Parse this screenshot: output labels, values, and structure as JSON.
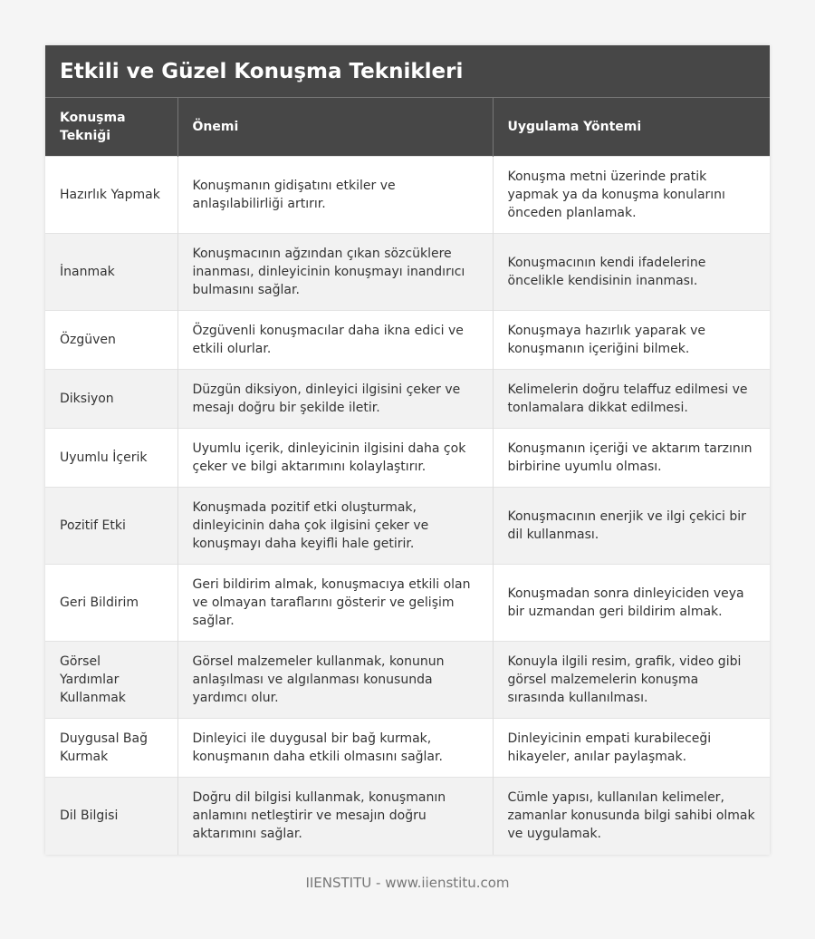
{
  "title": "Etkili ve Güzel Konuşma Teknikleri",
  "headers": [
    "Konuşma Tekniği",
    "Önemi",
    "Uygulama Yöntemi"
  ],
  "rows": [
    [
      "Hazırlık Yapmak",
      "Konuşmanın gidişatını etkiler ve anlaşılabilirliği artırır.",
      "Konuşma metni üzerinde pratik yapmak ya da konuşma konularını önceden planlamak."
    ],
    [
      "İnanmak",
      "Konuşmacının ağzından çıkan sözcüklere inanması, dinleyicinin konuşmayı inandırıcı bulmasını sağlar.",
      "Konuşmacının kendi ifadelerine öncelikle kendisinin inanması."
    ],
    [
      "Özgüven",
      "Özgüvenli konuşmacılar daha ikna edici ve etkili olurlar.",
      "Konuşmaya hazırlık yaparak ve konuşmanın içeriğini bilmek."
    ],
    [
      "Diksiyon",
      "Düzgün diksiyon, dinleyici ilgisini çeker ve mesajı doğru bir şekilde iletir.",
      "Kelimelerin doğru telaffuz edilmesi ve tonlamalara dikkat edilmesi."
    ],
    [
      "Uyumlu İçerik",
      "Uyumlu içerik, dinleyicinin ilgisini daha çok çeker ve bilgi aktarımını kolaylaştırır.",
      "Konuşmanın içeriği ve aktarım tarzının birbirine uyumlu olması."
    ],
    [
      "Pozitif Etki",
      "Konuşmada pozitif etki oluşturmak, dinleyicinin daha çok ilgisini çeker ve konuşmayı daha keyifli hale getirir.",
      "Konuşmacının enerjik ve ilgi çekici bir dil kullanması."
    ],
    [
      "Geri Bildirim",
      "Geri bildirim almak, konuşmacıya etkili olan ve olmayan taraflarını gösterir ve gelişim sağlar.",
      "Konuşmadan sonra dinleyiciden veya bir uzmandan geri bildirim almak."
    ],
    [
      "Görsel Yardımlar Kullanmak",
      "Görsel malzemeler kullanmak, konunun anlaşılması ve algılanması konusunda yardımcı olur.",
      "Konuyla ilgili resim, grafik, video gibi görsel malzemelerin konuşma sırasında kullanılması."
    ],
    [
      "Duygusal Bağ Kurmak",
      "Dinleyici ile duygusal bir bağ kurmak, konuşmanın daha etkili olmasını sağlar.",
      "Dinleyicinin empati kurabileceği hikayeler, anılar paylaşmak."
    ],
    [
      "Dil Bilgisi",
      "Doğru dil bilgisi kullanmak, konuşmanın anlamını netleştirir ve mesajın doğru aktarımını sağlar.",
      "Cümle yapısı, kullanılan kelimeler, zamanlar konusunda bilgi sahibi olmak ve uygulamak."
    ]
  ],
  "footer": "IIENSTITU - www.iienstitu.com"
}
